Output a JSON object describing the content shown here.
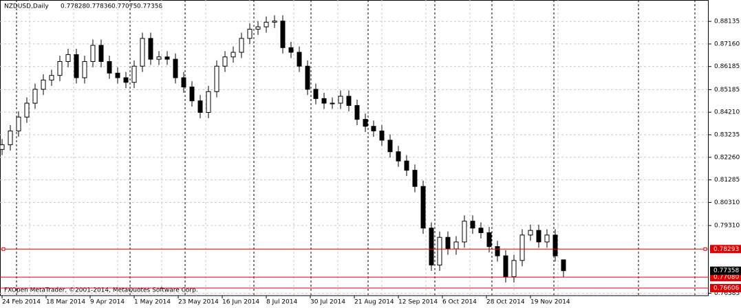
{
  "chart_data": {
    "type": "candlestick",
    "symbol": "NZDUSD,Daily",
    "copyright": "FXOpen MetaTrader, ©2001-2014, MetaQuotes Software Corp.",
    "x": [
      0,
      3,
      6,
      9,
      12,
      15,
      18,
      21,
      24,
      27,
      30,
      33,
      36,
      39,
      42,
      45,
      48,
      51,
      54,
      57,
      60,
      63,
      66,
      69,
      72,
      75,
      78,
      81,
      84,
      87,
      90,
      93,
      96,
      99,
      102,
      105,
      108,
      111,
      114,
      117,
      120,
      123,
      126,
      129,
      132,
      135,
      138,
      141,
      144,
      147,
      150,
      153,
      156,
      159,
      162,
      165,
      168,
      171,
      174,
      177,
      180,
      183,
      186,
      189,
      192,
      195,
      198,
      201,
      204
    ],
    "open": [
      0.826,
      0.828,
      0.834,
      0.84,
      0.846,
      0.852,
      0.856,
      0.858,
      0.864,
      0.867,
      0.857,
      0.864,
      0.871,
      0.864,
      0.859,
      0.857,
      0.855,
      0.862,
      0.874,
      0.865,
      0.866,
      0.865,
      0.857,
      0.853,
      0.847,
      0.842,
      0.851,
      0.862,
      0.866,
      0.868,
      0.874,
      0.878,
      0.879,
      0.881,
      0.8815,
      0.87,
      0.868,
      0.862,
      0.852,
      0.848,
      0.846,
      0.846,
      0.849,
      0.845,
      0.839,
      0.836,
      0.834,
      0.83,
      0.825,
      0.821,
      0.817,
      0.81,
      0.792,
      0.776,
      0.788,
      0.783,
      0.786,
      0.795,
      0.792,
      0.79,
      0.784,
      0.78,
      0.771,
      0.778,
      0.789,
      0.791,
      0.786,
      0.789,
      0.77828
    ],
    "high": [
      0.8305,
      0.8365,
      0.8425,
      0.8485,
      0.8545,
      0.8585,
      0.8605,
      0.8665,
      0.8695,
      0.8695,
      0.8665,
      0.8735,
      0.8735,
      0.8665,
      0.8615,
      0.8595,
      0.8645,
      0.8765,
      0.8765,
      0.8685,
      0.8685,
      0.8675,
      0.8595,
      0.8555,
      0.8495,
      0.8535,
      0.8645,
      0.8685,
      0.8705,
      0.8765,
      0.8805,
      0.8815,
      0.8835,
      0.884,
      0.884,
      0.8725,
      0.8705,
      0.8645,
      0.8545,
      0.8505,
      0.8485,
      0.8515,
      0.8515,
      0.8475,
      0.8415,
      0.8385,
      0.8365,
      0.8325,
      0.8275,
      0.8235,
      0.8195,
      0.8125,
      0.7945,
      0.7905,
      0.7905,
      0.7885,
      0.7975,
      0.7975,
      0.7945,
      0.7925,
      0.7865,
      0.7825,
      0.7805,
      0.7915,
      0.7935,
      0.7935,
      0.7915,
      0.7915,
      0.77836
    ],
    "low": [
      0.8235,
      0.8255,
      0.8315,
      0.8375,
      0.8435,
      0.8495,
      0.8535,
      0.8555,
      0.8615,
      0.8545,
      0.8545,
      0.8615,
      0.8615,
      0.8565,
      0.8545,
      0.8525,
      0.8525,
      0.8595,
      0.8625,
      0.8625,
      0.8625,
      0.8545,
      0.8505,
      0.8445,
      0.8395,
      0.8395,
      0.8485,
      0.8595,
      0.8635,
      0.8655,
      0.8715,
      0.8755,
      0.8765,
      0.8785,
      0.8675,
      0.8655,
      0.8595,
      0.8495,
      0.8455,
      0.8435,
      0.8435,
      0.8435,
      0.8425,
      0.8365,
      0.8335,
      0.8315,
      0.8275,
      0.8225,
      0.8185,
      0.8145,
      0.8075,
      0.7895,
      0.7735,
      0.7735,
      0.7805,
      0.7805,
      0.7835,
      0.7895,
      0.7875,
      0.7815,
      0.7775,
      0.7685,
      0.7685,
      0.7755,
      0.7865,
      0.7835,
      0.7835,
      0.7775,
      0.77075
    ],
    "close": [
      0.828,
      0.834,
      0.84,
      0.846,
      0.852,
      0.856,
      0.858,
      0.864,
      0.867,
      0.857,
      0.864,
      0.871,
      0.864,
      0.859,
      0.857,
      0.855,
      0.862,
      0.874,
      0.865,
      0.866,
      0.865,
      0.857,
      0.853,
      0.847,
      0.842,
      0.851,
      0.862,
      0.866,
      0.868,
      0.874,
      0.878,
      0.879,
      0.881,
      0.8815,
      0.87,
      0.868,
      0.862,
      0.852,
      0.848,
      0.846,
      0.846,
      0.849,
      0.845,
      0.839,
      0.836,
      0.834,
      0.83,
      0.825,
      0.821,
      0.817,
      0.81,
      0.792,
      0.776,
      0.788,
      0.783,
      0.786,
      0.795,
      0.792,
      0.79,
      0.784,
      0.78,
      0.771,
      0.778,
      0.789,
      0.791,
      0.786,
      0.789,
      0.78,
      0.77358
    ],
    "xlim": [
      -0.75,
      256.75
    ],
    "xticks": [
      {
        "value": 0,
        "label": "24 Feb 2014"
      },
      {
        "value": 16,
        "label": "18 Mar 2014"
      },
      {
        "value": 32,
        "label": "9 Apr 2014"
      },
      {
        "value": 48,
        "label": "1 May 2014"
      },
      {
        "value": 64,
        "label": "23 May 2014"
      },
      {
        "value": 80,
        "label": "16 Jun 2014"
      },
      {
        "value": 96,
        "label": "8 Jul 2014"
      },
      {
        "value": 112,
        "label": "30 Jul 2014"
      },
      {
        "value": 128,
        "label": "21 Aug 2014"
      },
      {
        "value": 144,
        "label": "12 Sep 2014"
      },
      {
        "value": 160,
        "label": "6 Oct 2014"
      },
      {
        "value": 176,
        "label": "28 Oct 2014"
      },
      {
        "value": 192,
        "label": "19 Nov 2014"
      }
    ],
    "ylim": [
      0.7628,
      0.8906
    ],
    "yticks": [
      {
        "value": 0.88135,
        "label": "0.88135"
      },
      {
        "value": 0.8716,
        "label": "0.87160"
      },
      {
        "value": 0.86185,
        "label": "0.86185"
      },
      {
        "value": 0.85185,
        "label": "0.85185"
      },
      {
        "value": 0.8421,
        "label": "0.84210"
      },
      {
        "value": 0.83235,
        "label": "0.83235"
      },
      {
        "value": 0.8226,
        "label": "0.82260"
      },
      {
        "value": 0.81285,
        "label": "0.81285"
      },
      {
        "value": 0.8031,
        "label": "0.80310"
      },
      {
        "value": 0.7931,
        "label": "0.79310"
      },
      {
        "value": 0.76385,
        "label": "0.76385"
      }
    ],
    "levels": [
      {
        "value": 0.78293,
        "label": "0.78293"
      },
      {
        "value": 0.7708,
        "label": "0.77080"
      },
      {
        "value": 0.76606,
        "label": "0.76606"
      }
    ],
    "level_color": "#e00000",
    "grid": true
  }
}
